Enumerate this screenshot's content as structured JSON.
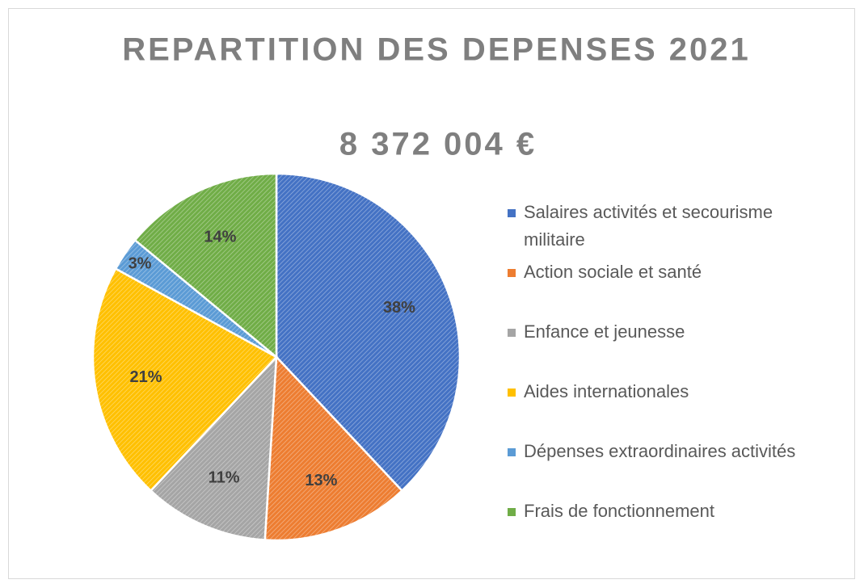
{
  "chart_data": {
    "type": "pie",
    "title": "REPARTITION DES DEPENSES 2021",
    "subtitle": "8 372 004 €",
    "categories": [
      "Salaires activités et secourisme militaire",
      "Action sociale et santé",
      "Enfance et jeunesse",
      "Aides internationales",
      "Dépenses extraordinaires activités",
      "Frais de fonctionnement"
    ],
    "values": [
      38,
      13,
      11,
      21,
      3,
      14
    ],
    "value_labels": [
      "38%",
      "13%",
      "11%",
      "21%",
      "3%",
      "14%"
    ],
    "colors": [
      "#4472c4",
      "#ed7d31",
      "#a5a5a5",
      "#ffc000",
      "#5b9bd5",
      "#70ad47"
    ],
    "legend": "right"
  }
}
